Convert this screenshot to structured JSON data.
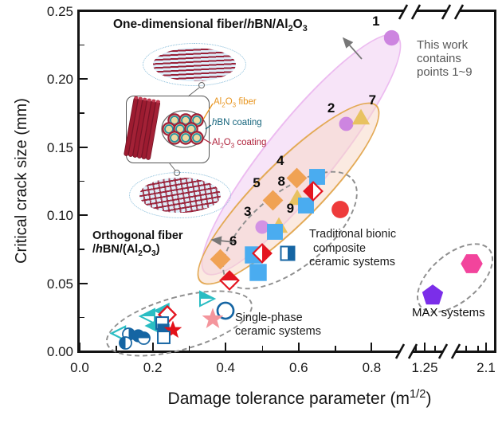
{
  "figure": {
    "y_axis": {
      "label": "Critical crack size (mm)",
      "ticks": [
        {
          "t": "0.25",
          "v": 0.25
        },
        {
          "t": "0.20",
          "v": 0.2
        },
        {
          "t": "0.15",
          "v": 0.15
        },
        {
          "t": "0.10",
          "v": 0.1
        },
        {
          "t": "0.05",
          "v": 0.05
        },
        {
          "t": "0.00",
          "v": 0.0
        }
      ]
    },
    "x_axis": {
      "label_rich": [
        {
          "t": "Damage tolerance parameter (m"
        },
        {
          "t": "1/2",
          "sup": true
        },
        {
          "t": ")"
        }
      ],
      "ticks": [
        {
          "t": "0.0",
          "v": 0.0
        },
        {
          "t": "0.2",
          "v": 0.2
        },
        {
          "t": "0.4",
          "v": 0.4
        },
        {
          "t": "0.6",
          "v": 0.6
        },
        {
          "t": "0.8",
          "v": 0.8
        },
        {
          "t": "1.25",
          "v": 1.25
        },
        {
          "t": "2.1",
          "v": 2.1
        }
      ]
    },
    "annotations": {
      "one_dim_rich": [
        {
          "t": "One-dimensional fiber/"
        },
        {
          "t": "h",
          "i": true
        },
        {
          "t": "BN/Al"
        },
        {
          "t": "2",
          "sub": true
        },
        {
          "t": "O"
        },
        {
          "t": "3",
          "sub": true
        }
      ],
      "this_work": [
        "This work",
        "contains",
        "points 1~9"
      ],
      "orthogonal_rich_1": [
        {
          "t": "Orthogonal fiber"
        }
      ],
      "orthogonal_rich_2": [
        {
          "t": "/"
        },
        {
          "t": "h",
          "i": true
        },
        {
          "t": "BN/(Al"
        },
        {
          "t": "2",
          "sub": true
        },
        {
          "t": "O"
        },
        {
          "t": "3",
          "sub": true
        },
        {
          "t": ")"
        }
      ],
      "traditional": [
        "Traditional bionic",
        "composite",
        "ceramic systems"
      ],
      "single_phase": [
        "Single-phase",
        "ceramic systems"
      ],
      "max": "MAX systems"
    },
    "inset": {
      "fiber_rich": [
        {
          "t": "Al"
        },
        {
          "t": "2",
          "sub": true
        },
        {
          "t": "O"
        },
        {
          "t": "3",
          "sub": true
        },
        {
          "t": " fiber"
        }
      ],
      "fiber_color": "#e8951f",
      "hbn_rich": [
        {
          "t": "h",
          "i": true
        },
        {
          "t": "BN coating"
        }
      ],
      "hbn_color": "#14647c",
      "coating_rich": [
        {
          "t": "Al"
        },
        {
          "t": "2",
          "sub": true
        },
        {
          "t": "O"
        },
        {
          "t": "3",
          "sub": true
        },
        {
          "t": " coating"
        }
      ],
      "coating_color": "#b0233c"
    }
  },
  "chart_data": {
    "type": "scatter",
    "title": "",
    "xlabel": "Damage tolerance parameter (m^1/2)",
    "ylabel": "Critical crack size (mm)",
    "xlim": [
      0.0,
      2.1
    ],
    "ylim": [
      0.0,
      0.25
    ],
    "broken_x_axis": true,
    "x_break_note": "axis broken after ~0.9; compressed ticks at 1.25 and 2.1",
    "x_ticks": [
      0.0,
      0.2,
      0.4,
      0.6,
      0.8,
      1.25,
      2.1
    ],
    "y_ticks": [
      0.0,
      0.05,
      0.1,
      0.15,
      0.2,
      0.25
    ],
    "grid": false,
    "groups": [
      {
        "name": "This work (points 1~9)",
        "points": [
          {
            "label": "1",
            "x": 0.855,
            "y": 0.23,
            "shape": "circle",
            "color": "#cd85e0",
            "fill": "solid",
            "size": 25,
            "label_side": "left"
          },
          {
            "label": "2",
            "x": 0.73,
            "y": 0.167,
            "shape": "circle",
            "color": "#cd85e0",
            "fill": "solid",
            "size": 23,
            "label_side": "left"
          },
          {
            "label": "3",
            "x": 0.5,
            "y": 0.091,
            "shape": "circle",
            "color": "#d392e4",
            "fill": "solid",
            "size": 22,
            "label_side": "left"
          },
          {
            "label": "4",
            "x": 0.595,
            "y": 0.127,
            "shape": "diamond",
            "color": "#f0a254",
            "fill": "solid",
            "size": 27,
            "label_side": "left"
          },
          {
            "label": "5",
            "x": 0.53,
            "y": 0.111,
            "shape": "diamond",
            "color": "#f0a254",
            "fill": "solid",
            "size": 27,
            "label_side": "left"
          },
          {
            "label": "6",
            "x": 0.385,
            "y": 0.0675,
            "shape": "diamond",
            "color": "#f0a254",
            "fill": "solid",
            "size": 27,
            "label_side": "right"
          },
          {
            "label": "7",
            "x": 0.77,
            "y": 0.172,
            "shape": "triangle-up",
            "color": "#e8c261",
            "fill": "solid",
            "size": 24,
            "label_side": "right"
          },
          {
            "label": "8",
            "x": 0.595,
            "y": 0.113,
            "shape": "triangle-up",
            "color": "#e8c261",
            "fill": "solid",
            "size": 24,
            "label_side": "left"
          },
          {
            "label": "9",
            "x": 0.545,
            "y": 0.0925,
            "shape": "triangle-up",
            "color": "#e8c261",
            "fill": "solid",
            "size": 24,
            "label_side": "right"
          }
        ]
      },
      {
        "name": "Traditional bionic composite ceramic systems",
        "points": [
          {
            "x": 0.65,
            "y": 0.128,
            "shape": "square",
            "color": "#4aacf0",
            "fill": "solid",
            "size": 26
          },
          {
            "x": 0.62,
            "y": 0.107,
            "shape": "square",
            "color": "#4aacf0",
            "fill": "solid",
            "size": 26
          },
          {
            "x": 0.535,
            "y": 0.088,
            "shape": "square",
            "color": "#4aacf0",
            "fill": "solid",
            "size": 26
          },
          {
            "x": 0.475,
            "y": 0.071,
            "shape": "square",
            "color": "#4aacf0",
            "fill": "solid",
            "size": 28
          },
          {
            "x": 0.49,
            "y": 0.058,
            "shape": "square",
            "color": "#4aacf0",
            "fill": "solid",
            "size": 28
          },
          {
            "x": 0.64,
            "y": 0.1175,
            "shape": "diamond",
            "color": "#e41520",
            "fill": "half-left",
            "size": 26
          },
          {
            "x": 0.5,
            "y": 0.072,
            "shape": "diamond",
            "color": "#e41520",
            "fill": "half-right",
            "size": 26
          },
          {
            "x": 0.41,
            "y": 0.052,
            "shape": "diamond",
            "color": "#e41520",
            "fill": "half-top",
            "size": 26
          },
          {
            "x": 0.57,
            "y": 0.072,
            "shape": "square",
            "color": "#1565a3",
            "fill": "half-right",
            "size": 24
          },
          {
            "x": 0.715,
            "y": 0.104,
            "shape": "circle",
            "color": "#ee3b3b",
            "fill": "solid",
            "size": 28
          }
        ]
      },
      {
        "name": "Single-phase ceramic systems",
        "points": [
          {
            "x": 0.35,
            "y": 0.0385,
            "shape": "triangle-right",
            "color": "#2abdc3",
            "fill": "half-top",
            "size": 24
          },
          {
            "x": 0.4,
            "y": 0.03,
            "shape": "circle",
            "color": "#1565a3",
            "fill": "open",
            "size": 28
          },
          {
            "x": 0.365,
            "y": 0.024,
            "shape": "star",
            "color": "#f4959c",
            "fill": "solid",
            "size": 26
          },
          {
            "x": 0.225,
            "y": 0.03,
            "shape": "triangle-left",
            "color": "#2abdc3",
            "fill": "solid",
            "size": 24
          },
          {
            "x": 0.24,
            "y": 0.027,
            "shape": "diamond",
            "color": "#e41520",
            "fill": "open",
            "size": 24
          },
          {
            "x": 0.185,
            "y": 0.0255,
            "shape": "triangle-left",
            "color": "#2abdc3",
            "fill": "half-top",
            "size": 24
          },
          {
            "x": 0.2,
            "y": 0.019,
            "shape": "triangle-left",
            "color": "#2abdc3",
            "fill": "solid",
            "size": 24
          },
          {
            "x": 0.225,
            "y": 0.021,
            "shape": "square",
            "color": "#1565a3",
            "fill": "open",
            "size": 21
          },
          {
            "x": 0.23,
            "y": 0.0155,
            "shape": "square",
            "color": "#1565a3",
            "fill": "solid",
            "size": 20
          },
          {
            "x": 0.255,
            "y": 0.0155,
            "shape": "star",
            "color": "#e31119",
            "fill": "solid",
            "size": 22
          },
          {
            "x": 0.23,
            "y": 0.0105,
            "shape": "square",
            "color": "#1565a3",
            "fill": "open",
            "size": 21
          },
          {
            "x": 0.105,
            "y": 0.013,
            "shape": "triangle-left",
            "color": "#2abdc3",
            "fill": "open",
            "size": 23
          },
          {
            "x": 0.135,
            "y": 0.0125,
            "shape": "circle",
            "color": "#1565a3",
            "fill": "half-right",
            "size": 21
          },
          {
            "x": 0.16,
            "y": 0.0115,
            "shape": "circle",
            "color": "#1565a3",
            "fill": "solid",
            "size": 21
          },
          {
            "x": 0.125,
            "y": 0.006,
            "shape": "circle",
            "color": "#1565a3",
            "fill": "half-left",
            "size": 21
          },
          {
            "x": 0.175,
            "y": 0.0095,
            "shape": "circle",
            "color": "#1565a3",
            "fill": "half-top",
            "size": 21
          }
        ]
      },
      {
        "name": "MAX systems",
        "points": [
          {
            "x": 1.36,
            "y": 0.041,
            "shape": "pentagon",
            "color": "#7b2ee9",
            "fill": "solid",
            "size": 28
          },
          {
            "x": 1.9,
            "y": 0.0645,
            "shape": "hexagon",
            "color": "#f2449c",
            "fill": "solid",
            "size": 28
          }
        ]
      }
    ]
  }
}
